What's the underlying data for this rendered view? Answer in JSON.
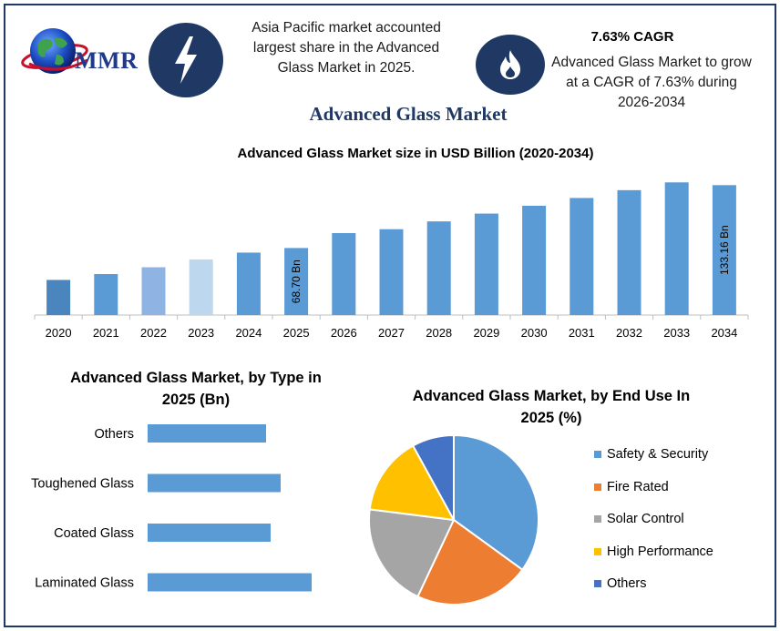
{
  "header": {
    "logo_text": "MMR",
    "logo_icon": "globe-logo-icon",
    "lightning_icon": "lightning-bolt-icon",
    "flame_icon": "flame-icon",
    "region_text_line1": "Asia Pacific market accounted",
    "region_text_line2": "largest share in the Advanced",
    "region_text_line3": "Glass Market in 2025.",
    "cagr_title": "7.63% CAGR",
    "cagr_text_line1": "Advanced Glass Market to grow",
    "cagr_text_line2": "at a CAGR of 7.63% during",
    "cagr_text_line3": "2026-2034"
  },
  "main_title": "Advanced Glass Market",
  "colors": {
    "navy": "#1f3864",
    "bar_blue": "#5b9bd5",
    "bar_2020": "#4a86bd",
    "bar_2022": "#8fb4e3",
    "bar_2023": "#bdd7ee",
    "orange": "#ed7d31",
    "gray": "#a5a5a5",
    "yellow": "#ffc000",
    "dark_blue": "#4472c4"
  },
  "chart_data": [
    {
      "type": "bar",
      "title": "Advanced Glass Market size in USD Billion (2020-2034)",
      "categories": [
        "2020",
        "2021",
        "2022",
        "2023",
        "2024",
        "2025",
        "2026",
        "2027",
        "2028",
        "2029",
        "2030",
        "2031",
        "2032",
        "2033",
        "2034"
      ],
      "values": [
        36.0,
        42.0,
        49.0,
        57.0,
        64.0,
        68.7,
        84.0,
        88.0,
        96.0,
        104.0,
        112.0,
        120.0,
        128.0,
        136.0,
        133.16
      ],
      "data_labels": {
        "2025": "68.70 Bn",
        "2034": "133.16 Bn"
      },
      "ylim": [
        0,
        140
      ],
      "grid": false
    },
    {
      "type": "bar",
      "orientation": "horizontal",
      "title_line1": "Advanced Glass Market, by Type in",
      "title_line2": "2025 (Bn)",
      "categories": [
        "Others",
        "Toughened Glass",
        "Coated Glass",
        "Laminated Glass"
      ],
      "values": [
        13,
        14.6,
        13.5,
        18
      ],
      "xlim": [
        0,
        20
      ]
    },
    {
      "type": "pie",
      "title_line1": "Advanced Glass Market, by End Use In",
      "title_line2": "2025 (%)",
      "labels": [
        "Safety & Security",
        "Fire Rated",
        "Solar Control",
        "High Performance",
        "Others"
      ],
      "values": [
        35,
        22,
        20,
        15,
        8
      ],
      "legend_position": "right"
    }
  ]
}
